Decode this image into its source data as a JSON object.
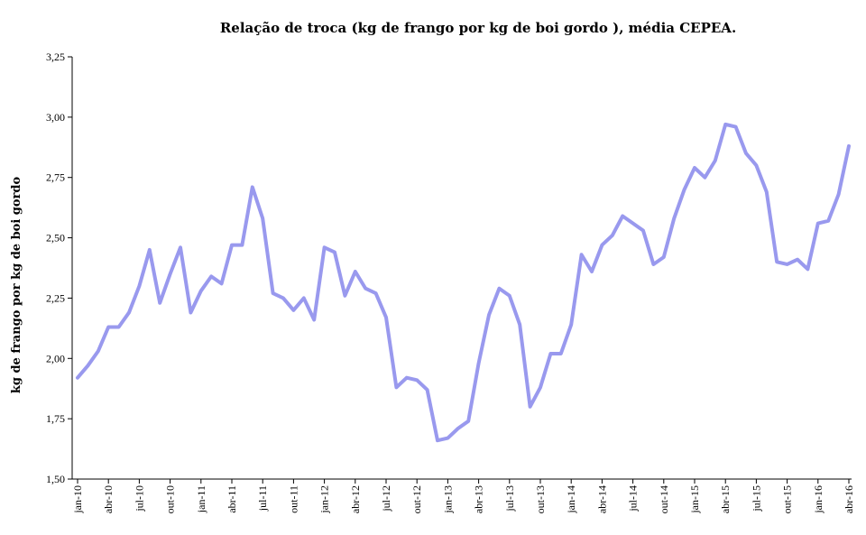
{
  "chart_data": {
    "type": "line",
    "title": "Relação de troca (kg de frango por kg de boi gordo ), média CEPEA.",
    "xlabel": "",
    "ylabel": "kg de frango por kg de boi gordo",
    "ylim": [
      1.5,
      3.25
    ],
    "yticks": [
      "1,50",
      "1,75",
      "2,00",
      "2,25",
      "2,50",
      "2,75",
      "3,00",
      "3,25"
    ],
    "grid": false,
    "tick_labels": [
      "jan-10",
      "abr-10",
      "jul-10",
      "out-10",
      "jan-11",
      "abr-11",
      "jul-11",
      "out-11",
      "jan-12",
      "abr-12",
      "jul-12",
      "out-12",
      "jan-13",
      "abr-13",
      "jul-13",
      "out-13",
      "jan-14",
      "abr-14",
      "jul-14",
      "out-14",
      "jan-15",
      "abr-15",
      "jul-15",
      "out-15",
      "jan-16",
      "abr-16"
    ],
    "series": [
      {
        "name": "Relação de troca",
        "color": "#9999ee",
        "values": [
          1.92,
          1.97,
          2.03,
          2.13,
          2.13,
          2.19,
          2.3,
          2.45,
          2.23,
          2.35,
          2.46,
          2.19,
          2.28,
          2.34,
          2.31,
          2.47,
          2.47,
          2.71,
          2.58,
          2.27,
          2.25,
          2.2,
          2.25,
          2.16,
          2.46,
          2.44,
          2.26,
          2.36,
          2.29,
          2.27,
          2.17,
          1.88,
          1.92,
          1.91,
          1.87,
          1.66,
          1.67,
          1.71,
          1.74,
          1.98,
          2.18,
          2.29,
          2.26,
          2.14,
          1.8,
          1.88,
          2.02,
          2.02,
          2.14,
          2.43,
          2.36,
          2.47,
          2.51,
          2.59,
          2.56,
          2.53,
          2.39,
          2.42,
          2.58,
          2.7,
          2.79,
          2.75,
          2.82,
          2.97,
          2.96,
          2.85,
          2.8,
          2.69,
          2.4,
          2.39,
          2.41,
          2.37,
          2.56,
          2.57,
          2.68,
          2.88
        ]
      }
    ]
  }
}
